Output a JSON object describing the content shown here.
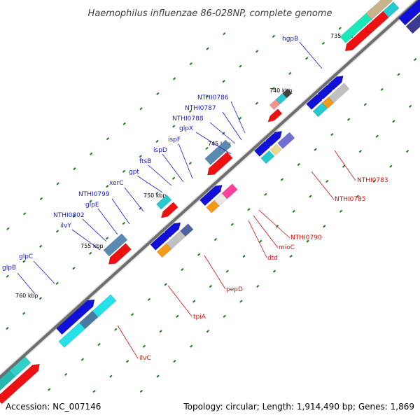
{
  "title": "Haemophilus influenzae 86-028NP, complete genome",
  "footer": {
    "accession": "Accession: NC_007146",
    "stats": "Topology: circular; Length: 1,914,490 bp; Genes: 1,869"
  },
  "colors": {
    "forward_label": "#1a1acc",
    "reverse_label": "#cc1111",
    "forward_arrow": "#1010d8",
    "reverse_arrow": "#ee1111",
    "backbone": "#777777",
    "tick": "#1d7a1d"
  },
  "kbp_marks": [
    "735 kbp",
    "740 kbp",
    "745 kbp",
    "750 kbp",
    "755 kbp",
    "760 kbp"
  ],
  "forward_labels": [
    "hgpB",
    "NTHI0786",
    "NTHI0787",
    "NTHI0788",
    "glpX",
    "ispF",
    "ispD",
    "ftsB",
    "gpt",
    "xerC",
    "NTHI0799",
    "glpE",
    "NTHI0802",
    "ilvY",
    "glpC",
    "glpB"
  ],
  "reverse_labels": [
    "NTHI0783",
    "NTHI0785",
    "NTHI0790",
    "mioC",
    "dtd",
    "pepD",
    "tpiA",
    "ilvC"
  ]
}
